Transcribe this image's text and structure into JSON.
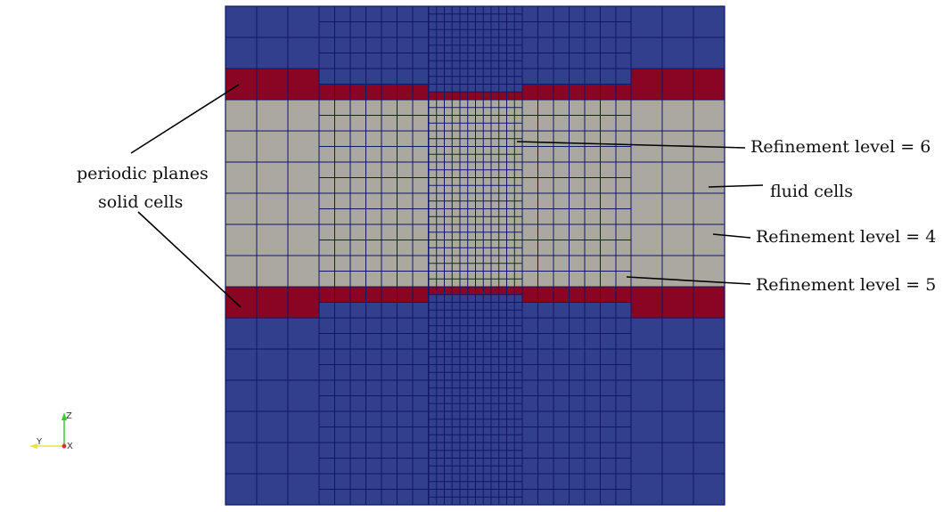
{
  "labels": {
    "periodic_planes": "periodic planes",
    "solid_cells": "solid cells",
    "refinement_6": "Refinement level = 6",
    "fluid_cells": "fluid cells",
    "refinement_4": "Refinement level = 4",
    "refinement_5": "Refinement level = 5"
  },
  "axes_triad": {
    "z": "Z",
    "y": "Y",
    "x": "X"
  },
  "colors": {
    "fluid": "#aba8a0",
    "solid": "#8a0524",
    "outside": "#313f8c",
    "grid_line": "#101866",
    "annotation_line": "#000000",
    "axis_z": "#33cc33",
    "axis_y": "#e6e633",
    "axis_x": "#e03030"
  }
}
